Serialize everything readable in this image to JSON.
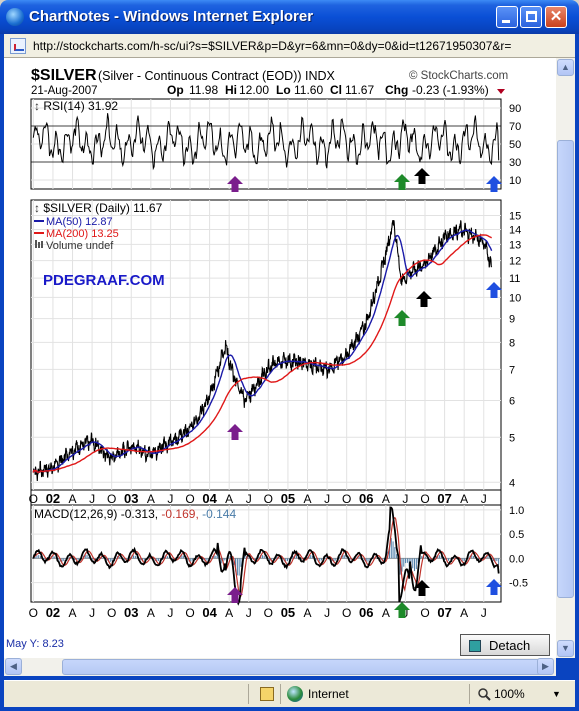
{
  "window": {
    "title": "ChartNotes - Windows Internet Explorer",
    "address": "http://stockcharts.com/h-sc/ui?s=$SILVER&p=D&yr=6&mn=0&dy=0&id=t12671950307&r="
  },
  "header": {
    "symbol": "$SILVER",
    "name": "(Silver - Continuous Contract (EOD))",
    "exchange": "INDX",
    "brand": "© StockCharts.com",
    "date": "21-Aug-2007",
    "op_label": "Op",
    "op": "11.98",
    "hi_label": "Hi",
    "hi": "12.00",
    "lo_label": "Lo",
    "lo": "11.60",
    "cl_label": "Cl",
    "cl": "11.67",
    "chg_label": "Chg",
    "chg": "-0.23 (-1.93%)"
  },
  "watermark": "PDEGRAAF.COM",
  "status": {
    "readout": "May  Y: 8.23",
    "detach": "Detach",
    "zone": "Internet",
    "zoom": "100%"
  },
  "colors": {
    "price": "#000000",
    "ma50": "#1a1aa8",
    "ma200": "#e01818",
    "macd": "#000000",
    "macd_signal": "#c0342c",
    "macd_hist": "#4a7ca8",
    "arrow_purple": "#7a1e8c",
    "arrow_green": "#1e8a2a",
    "arrow_black": "#000000",
    "arrow_blue": "#1f4fe0",
    "watermark": "#1a1ac8"
  },
  "chart_data": [
    {
      "type": "line",
      "panel": "RSI",
      "title": "RSI(14) 31.92",
      "ylim": [
        0,
        100
      ],
      "y_ticks": [
        "90",
        "70",
        "50",
        "30",
        "10"
      ],
      "overbought": 70,
      "oversold": 30,
      "last": 31.92
    },
    {
      "type": "line",
      "panel": "Price",
      "title": "$SILVER (Daily) 11.67",
      "scale": "log",
      "ylim": [
        3.85,
        16.2
      ],
      "y_ticks": [
        "15",
        "14",
        "13",
        "12",
        "11",
        "10",
        "9",
        "8",
        "7",
        "6",
        "5",
        "4"
      ],
      "legend": [
        "$SILVER (Daily) 11.67",
        "MA(50) 12.87",
        "MA(200) 13.25",
        "Volume undef"
      ],
      "x_labels": [
        "O",
        "02",
        "A",
        "J",
        "O",
        "03",
        "A",
        "J",
        "O",
        "04",
        "A",
        "J",
        "O",
        "05",
        "A",
        "J",
        "O",
        "06",
        "A",
        "J",
        "O",
        "07",
        "A",
        "J"
      ],
      "series": [
        {
          "name": "$SILVER (Daily)",
          "last": 11.67,
          "x": [
            2001.75,
            2002.0,
            2002.25,
            2002.5,
            2002.75,
            2003.0,
            2003.25,
            2003.5,
            2003.75,
            2004.0,
            2004.2,
            2004.3,
            2004.45,
            2004.6,
            2004.8,
            2005.0,
            2005.25,
            2005.5,
            2005.75,
            2006.0,
            2006.2,
            2006.35,
            2006.45,
            2006.55,
            2006.75,
            2007.0,
            2007.2,
            2007.35,
            2007.5,
            2007.6
          ],
          "y": [
            4.2,
            4.3,
            4.7,
            4.9,
            4.5,
            4.8,
            4.6,
            4.9,
            5.2,
            6.1,
            7.9,
            6.8,
            6.0,
            6.5,
            7.2,
            7.3,
            7.2,
            7.0,
            7.5,
            8.8,
            11.5,
            14.6,
            10.8,
            11.3,
            11.8,
            13.5,
            14.0,
            13.6,
            13.2,
            11.67
          ]
        },
        {
          "name": "MA(50)",
          "last": 12.87
        },
        {
          "name": "MA(200)",
          "last": 13.25
        }
      ]
    },
    {
      "type": "line",
      "panel": "MACD",
      "title": "MACD(12,26,9)",
      "values": [
        "-0.313,",
        "-0.169,",
        "-0.144"
      ],
      "ylim": [
        -0.9,
        1.1
      ],
      "y_ticks": [
        "1.0",
        "0.5",
        "0.0",
        "-0.5"
      ]
    }
  ]
}
